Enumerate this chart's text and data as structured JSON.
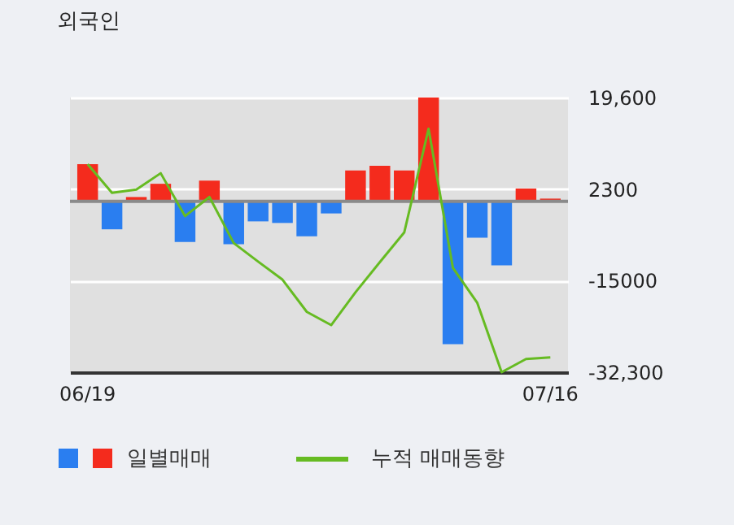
{
  "chart_data": {
    "type": "bar",
    "title": "외국인",
    "categories": [
      "06/19",
      null,
      null,
      null,
      null,
      null,
      null,
      null,
      null,
      null,
      null,
      null,
      null,
      null,
      null,
      null,
      null,
      null,
      null,
      "07/16"
    ],
    "series": [
      {
        "name": "일별매매",
        "colors": [
          "#f42b1d",
          "#2a7ef0",
          "#f42b1d",
          "#f42b1d",
          "#2a7ef0",
          "#f42b1d",
          "#2a7ef0",
          "#2a7ef0",
          "#2a7ef0",
          "#2a7ef0",
          "#2a7ef0",
          "#f42b1d",
          "#f42b1d",
          "#f42b1d",
          "#f42b1d",
          "#2a7ef0",
          "#2a7ef0",
          "#2a7ef0",
          "#f42b1d",
          "#f42b1d"
        ],
        "values": [
          7000,
          -5300,
          800,
          3300,
          -7700,
          3900,
          -8100,
          -3800,
          -4100,
          -6600,
          -2300,
          5800,
          6700,
          5800,
          19600,
          -27000,
          -6900,
          -12100,
          2400,
          500
        ]
      },
      {
        "name": "누적 매매동향",
        "type": "line",
        "color": "#66bb22",
        "values": [
          7000,
          1600,
          2200,
          5300,
          -2800,
          800,
          -7900,
          -11400,
          -14800,
          -20900,
          -23400,
          -17200,
          -11500,
          -5900,
          13700,
          -12600,
          -19200,
          -32300,
          -29800,
          -29500
        ]
      }
    ],
    "ylim": [
      -32300,
      19600
    ],
    "yticks": [
      {
        "value": 19600,
        "label": "19,600"
      },
      2300,
      -15000,
      {
        "value": -32300,
        "label": "-32,300"
      }
    ],
    "ref_lines": [
      {
        "axis": "y",
        "value": 0,
        "color": "#8a8a8a"
      }
    ],
    "grid": "y",
    "legend": "bottom"
  }
}
